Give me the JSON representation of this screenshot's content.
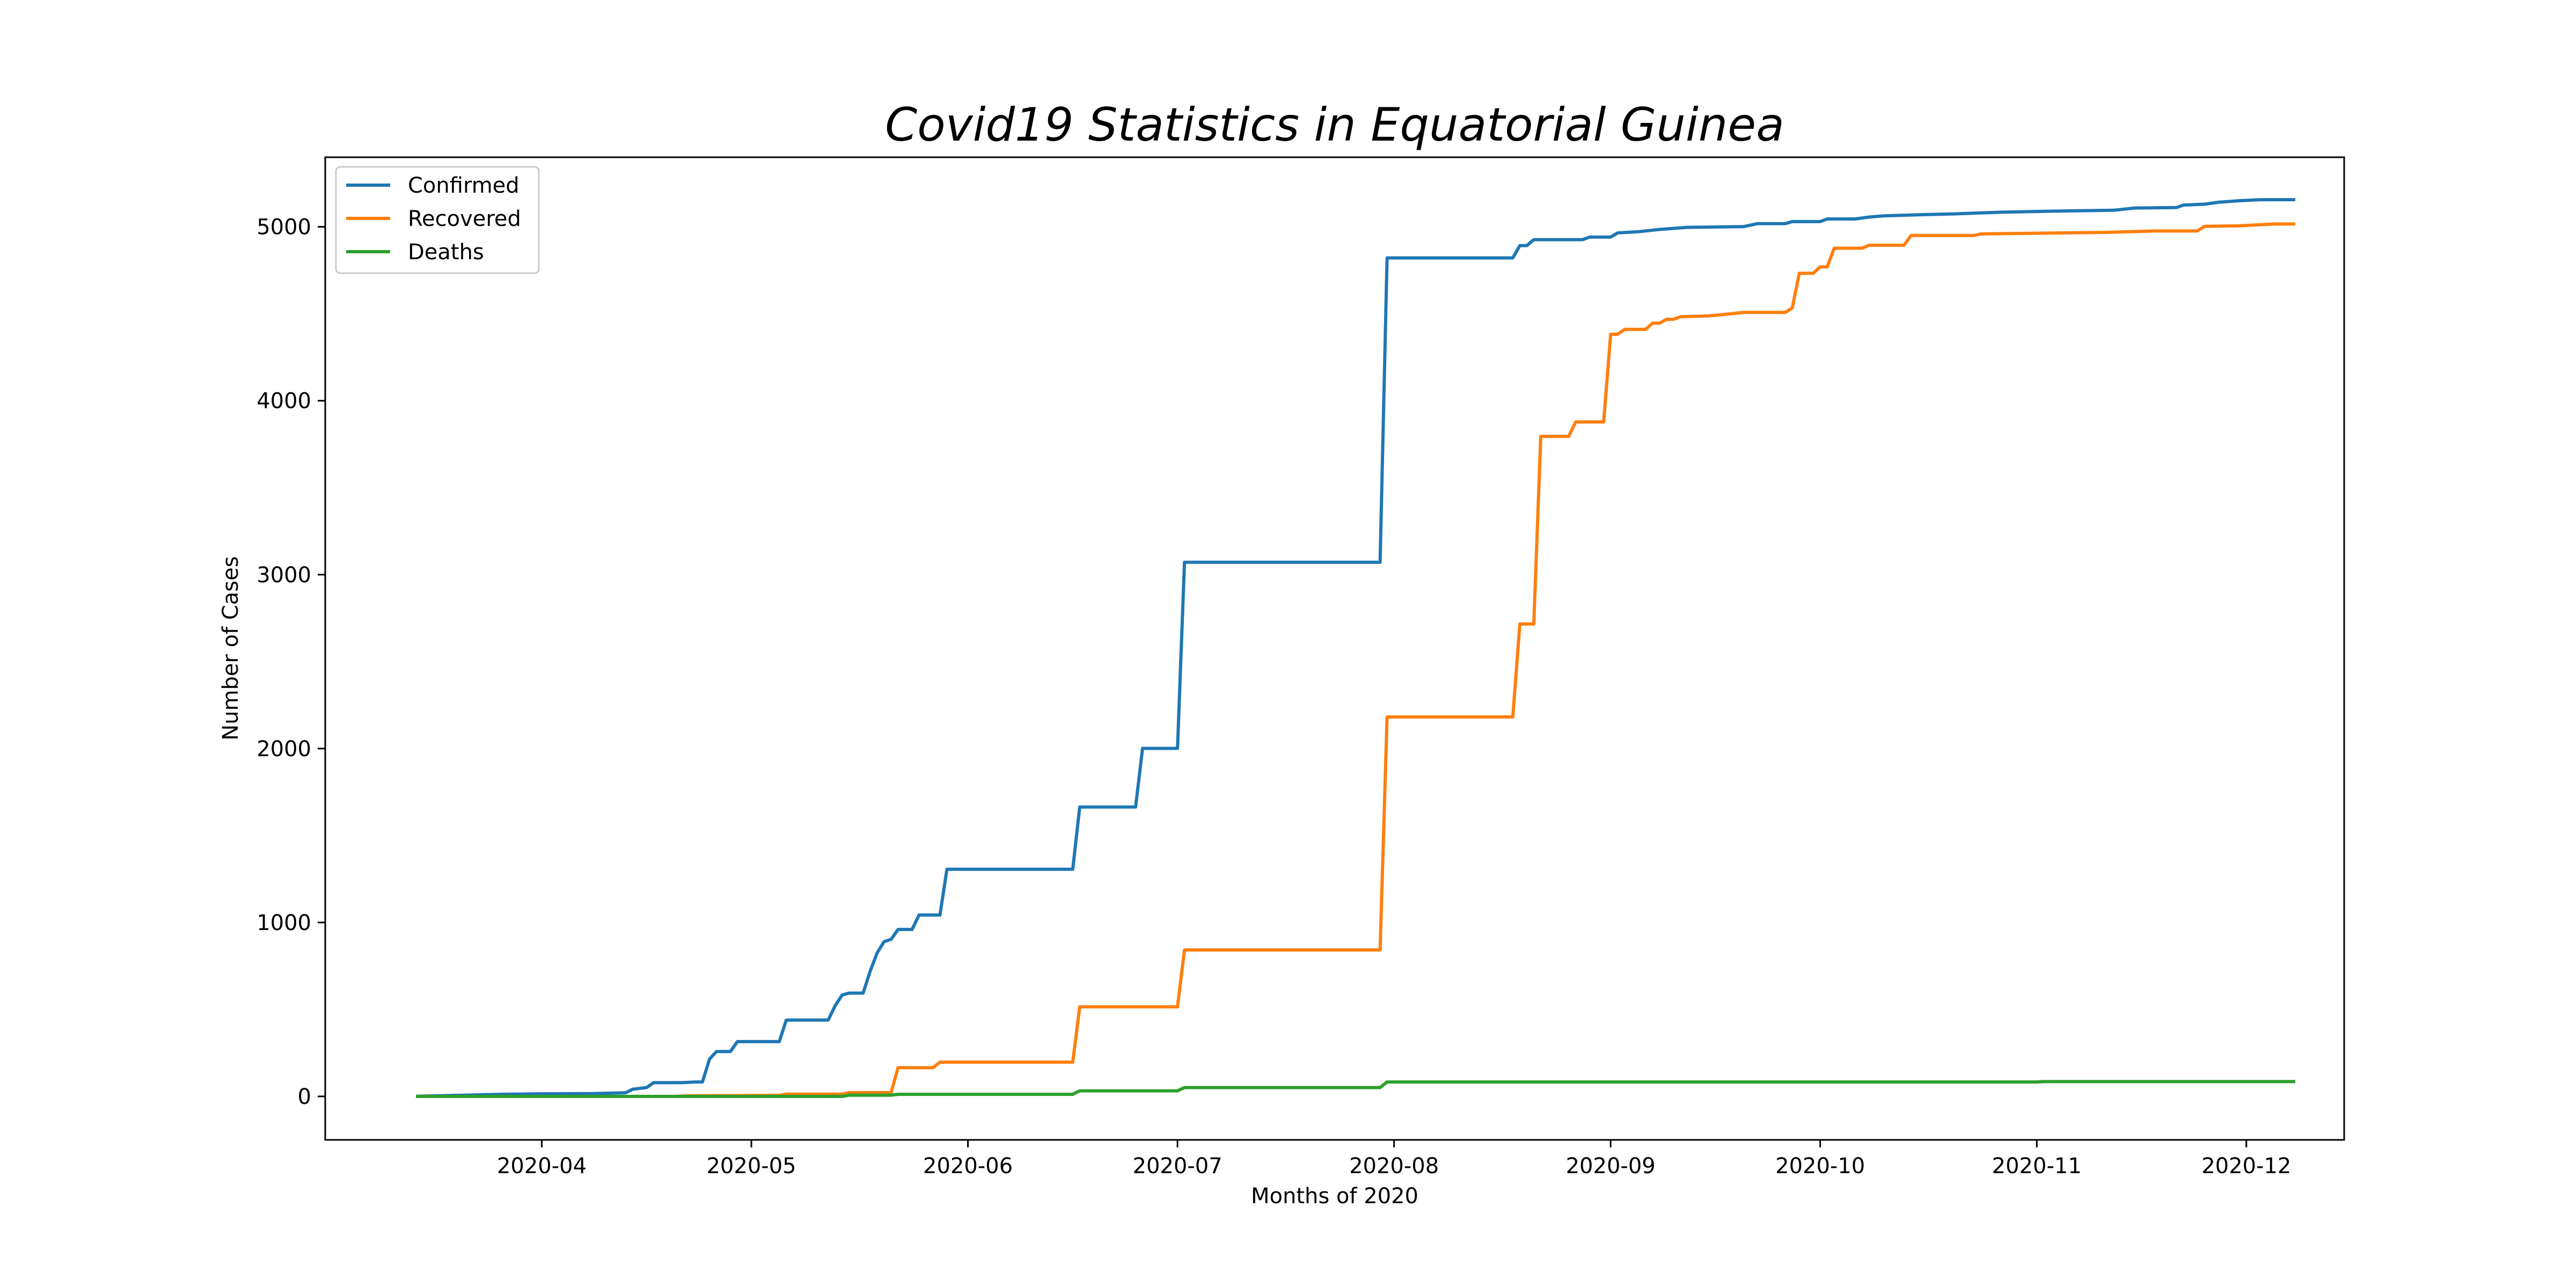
{
  "chart_data": {
    "type": "line",
    "title": "Covid19 Statistics in Equatorial Guinea",
    "xlabel": "Months of 2020",
    "ylabel": "Number of Cases",
    "xlim": [
      "2020-03-01",
      "2020-12-15"
    ],
    "ylim": [
      -250,
      5400
    ],
    "x_ticks": [
      "2020-04-01",
      "2020-05-01",
      "2020-06-01",
      "2020-07-01",
      "2020-08-01",
      "2020-09-01",
      "2020-10-01",
      "2020-11-01",
      "2020-12-01"
    ],
    "x_tick_labels": [
      "2020-04",
      "2020-05",
      "2020-06",
      "2020-07",
      "2020-08",
      "2020-09",
      "2020-10",
      "2020-11",
      "2020-12"
    ],
    "y_ticks": [
      0,
      1000,
      2000,
      3000,
      4000,
      5000
    ],
    "y_tick_labels": [
      "0",
      "1000",
      "2000",
      "3000",
      "4000",
      "5000"
    ],
    "legend_position": "top-left",
    "grid": false,
    "series": [
      {
        "name": "Confirmed",
        "color": "#1f77b4",
        "points": [
          [
            "2020-03-14",
            1
          ],
          [
            "2020-03-20",
            6
          ],
          [
            "2020-03-26",
            12
          ],
          [
            "2020-04-01",
            15
          ],
          [
            "2020-04-08",
            16
          ],
          [
            "2020-04-13",
            21
          ],
          [
            "2020-04-14",
            41
          ],
          [
            "2020-04-16",
            51
          ],
          [
            "2020-04-17",
            79
          ],
          [
            "2020-04-21",
            79
          ],
          [
            "2020-04-23",
            83
          ],
          [
            "2020-04-24",
            83
          ],
          [
            "2020-04-25",
            214
          ],
          [
            "2020-04-26",
            258
          ],
          [
            "2020-04-28",
            258
          ],
          [
            "2020-04-29",
            315
          ],
          [
            "2020-05-05",
            315
          ],
          [
            "2020-05-06",
            439
          ],
          [
            "2020-05-12",
            439
          ],
          [
            "2020-05-13",
            522
          ],
          [
            "2020-05-14",
            583
          ],
          [
            "2020-05-15",
            594
          ],
          [
            "2020-05-17",
            594
          ],
          [
            "2020-05-18",
            719
          ],
          [
            "2020-05-19",
            825
          ],
          [
            "2020-05-20",
            890
          ],
          [
            "2020-05-21",
            903
          ],
          [
            "2020-05-22",
            960
          ],
          [
            "2020-05-24",
            960
          ],
          [
            "2020-05-25",
            1043
          ],
          [
            "2020-05-28",
            1043
          ],
          [
            "2020-05-29",
            1306
          ],
          [
            "2020-06-16",
            1306
          ],
          [
            "2020-06-17",
            1664
          ],
          [
            "2020-06-25",
            1664
          ],
          [
            "2020-06-26",
            2001
          ],
          [
            "2020-07-01",
            2001
          ],
          [
            "2020-07-02",
            3071
          ],
          [
            "2020-07-30",
            3071
          ],
          [
            "2020-07-31",
            4821
          ],
          [
            "2020-08-18",
            4821
          ],
          [
            "2020-08-19",
            4892
          ],
          [
            "2020-08-20",
            4892
          ],
          [
            "2020-08-21",
            4926
          ],
          [
            "2020-08-28",
            4926
          ],
          [
            "2020-08-29",
            4941
          ],
          [
            "2020-09-01",
            4941
          ],
          [
            "2020-09-02",
            4965
          ],
          [
            "2020-09-05",
            4972
          ],
          [
            "2020-09-08",
            4985
          ],
          [
            "2020-09-12",
            4997
          ],
          [
            "2020-09-20",
            5001
          ],
          [
            "2020-09-22",
            5018
          ],
          [
            "2020-09-26",
            5018
          ],
          [
            "2020-09-27",
            5030
          ],
          [
            "2020-10-01",
            5030
          ],
          [
            "2020-10-02",
            5045
          ],
          [
            "2020-10-06",
            5045
          ],
          [
            "2020-10-08",
            5056
          ],
          [
            "2020-10-10",
            5063
          ],
          [
            "2020-10-16",
            5070
          ],
          [
            "2020-10-20",
            5074
          ],
          [
            "2020-10-27",
            5084
          ],
          [
            "2020-11-03",
            5090
          ],
          [
            "2020-11-12",
            5095
          ],
          [
            "2020-11-15",
            5108
          ],
          [
            "2020-11-21",
            5111
          ],
          [
            "2020-11-22",
            5125
          ],
          [
            "2020-11-25",
            5130
          ],
          [
            "2020-11-27",
            5141
          ],
          [
            "2020-11-30",
            5150
          ],
          [
            "2020-12-03",
            5156
          ],
          [
            "2020-12-08",
            5156
          ]
        ]
      },
      {
        "name": "Recovered",
        "color": "#ff7f0e",
        "points": [
          [
            "2020-03-14",
            0
          ],
          [
            "2020-04-20",
            0
          ],
          [
            "2020-04-22",
            4
          ],
          [
            "2020-05-05",
            6
          ],
          [
            "2020-05-06",
            13
          ],
          [
            "2020-05-14",
            13
          ],
          [
            "2020-05-15",
            22
          ],
          [
            "2020-05-21",
            22
          ],
          [
            "2020-05-22",
            165
          ],
          [
            "2020-05-27",
            165
          ],
          [
            "2020-05-28",
            197
          ],
          [
            "2020-06-16",
            197
          ],
          [
            "2020-06-17",
            515
          ],
          [
            "2020-07-01",
            515
          ],
          [
            "2020-07-02",
            842
          ],
          [
            "2020-07-30",
            842
          ],
          [
            "2020-07-31",
            2182
          ],
          [
            "2020-08-18",
            2182
          ],
          [
            "2020-08-19",
            2716
          ],
          [
            "2020-08-21",
            2716
          ],
          [
            "2020-08-22",
            3795
          ],
          [
            "2020-08-26",
            3795
          ],
          [
            "2020-08-27",
            3878
          ],
          [
            "2020-08-31",
            3878
          ],
          [
            "2020-09-01",
            4382
          ],
          [
            "2020-09-02",
            4382
          ],
          [
            "2020-09-03",
            4410
          ],
          [
            "2020-09-06",
            4410
          ],
          [
            "2020-09-07",
            4446
          ],
          [
            "2020-09-08",
            4446
          ],
          [
            "2020-09-09",
            4468
          ],
          [
            "2020-09-10",
            4468
          ],
          [
            "2020-09-11",
            4483
          ],
          [
            "2020-09-15",
            4488
          ],
          [
            "2020-09-17",
            4495
          ],
          [
            "2020-09-20",
            4508
          ],
          [
            "2020-09-26",
            4508
          ],
          [
            "2020-09-27",
            4533
          ],
          [
            "2020-09-28",
            4733
          ],
          [
            "2020-09-30",
            4733
          ],
          [
            "2020-10-01",
            4770
          ],
          [
            "2020-10-02",
            4770
          ],
          [
            "2020-10-03",
            4877
          ],
          [
            "2020-10-07",
            4877
          ],
          [
            "2020-10-08",
            4894
          ],
          [
            "2020-10-13",
            4894
          ],
          [
            "2020-10-14",
            4950
          ],
          [
            "2020-10-23",
            4950
          ],
          [
            "2020-10-24",
            4959
          ],
          [
            "2020-11-11",
            4968
          ],
          [
            "2020-11-18",
            4976
          ],
          [
            "2020-11-24",
            4976
          ],
          [
            "2020-11-25",
            5003
          ],
          [
            "2020-11-30",
            5006
          ],
          [
            "2020-12-05",
            5016
          ],
          [
            "2020-12-08",
            5016
          ]
        ]
      },
      {
        "name": "Deaths",
        "color": "#2ca02c",
        "points": [
          [
            "2020-03-14",
            0
          ],
          [
            "2020-05-14",
            0
          ],
          [
            "2020-05-15",
            7
          ],
          [
            "2020-05-21",
            7
          ],
          [
            "2020-05-22",
            12
          ],
          [
            "2020-06-16",
            12
          ],
          [
            "2020-06-17",
            32
          ],
          [
            "2020-07-01",
            32
          ],
          [
            "2020-07-02",
            51
          ],
          [
            "2020-07-30",
            51
          ],
          [
            "2020-07-31",
            83
          ],
          [
            "2020-11-01",
            83
          ],
          [
            "2020-11-02",
            85
          ],
          [
            "2020-12-08",
            85
          ]
        ]
      }
    ]
  }
}
